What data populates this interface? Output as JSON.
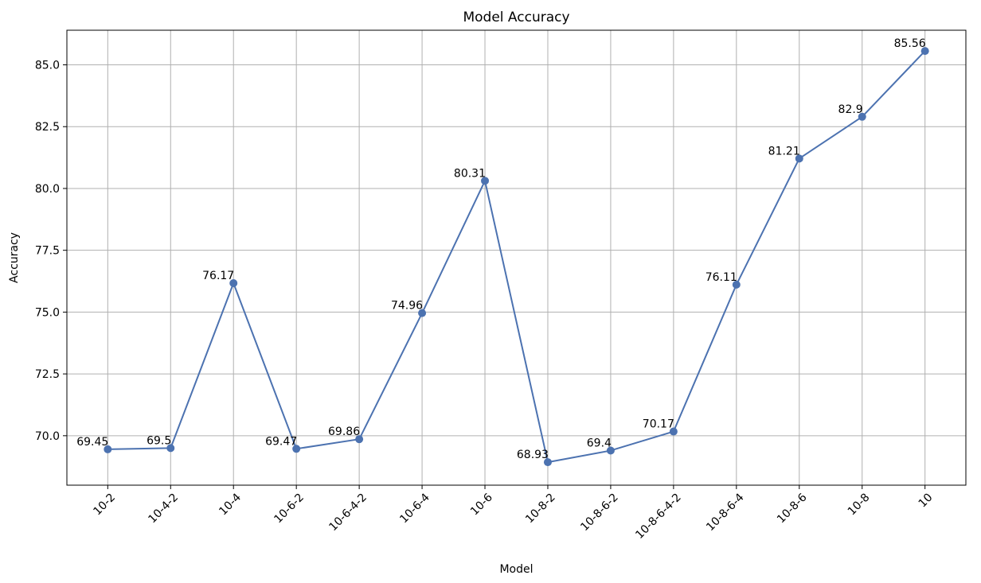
{
  "chart_data": {
    "type": "line",
    "title": "Model Accuracy",
    "xlabel": "Model",
    "ylabel": "Accuracy",
    "categories": [
      "10-2",
      "10-4-2",
      "10-4",
      "10-6-2",
      "10-6-4-2",
      "10-6-4",
      "10-6",
      "10-8-2",
      "10-8-6-2",
      "10-8-6-4-2",
      "10-8-6-4",
      "10-8-6",
      "10-8",
      "10"
    ],
    "series": [
      {
        "values": [
          69.45,
          69.5,
          76.17,
          69.47,
          69.86,
          74.96,
          80.31,
          68.93,
          69.4,
          70.17,
          76.11,
          81.21,
          82.9,
          85.56
        ],
        "color": "#4c72b0",
        "marker": "circle"
      }
    ],
    "data_labels": [
      "69.45",
      "69.5",
      "76.17",
      "69.47",
      "69.86",
      "74.96",
      "80.31",
      "68.93",
      "69.4",
      "70.17",
      "76.11",
      "81.21",
      "82.9",
      "85.56"
    ],
    "ylim": [
      68.0,
      86.4
    ],
    "yticks": [
      70.0,
      72.5,
      75.0,
      77.5,
      80.0,
      82.5,
      85.0
    ],
    "ytick_labels": [
      "70.0",
      "72.5",
      "75.0",
      "77.5",
      "80.0",
      "82.5",
      "85.0"
    ],
    "grid": true,
    "xtick_rotation": 45
  }
}
